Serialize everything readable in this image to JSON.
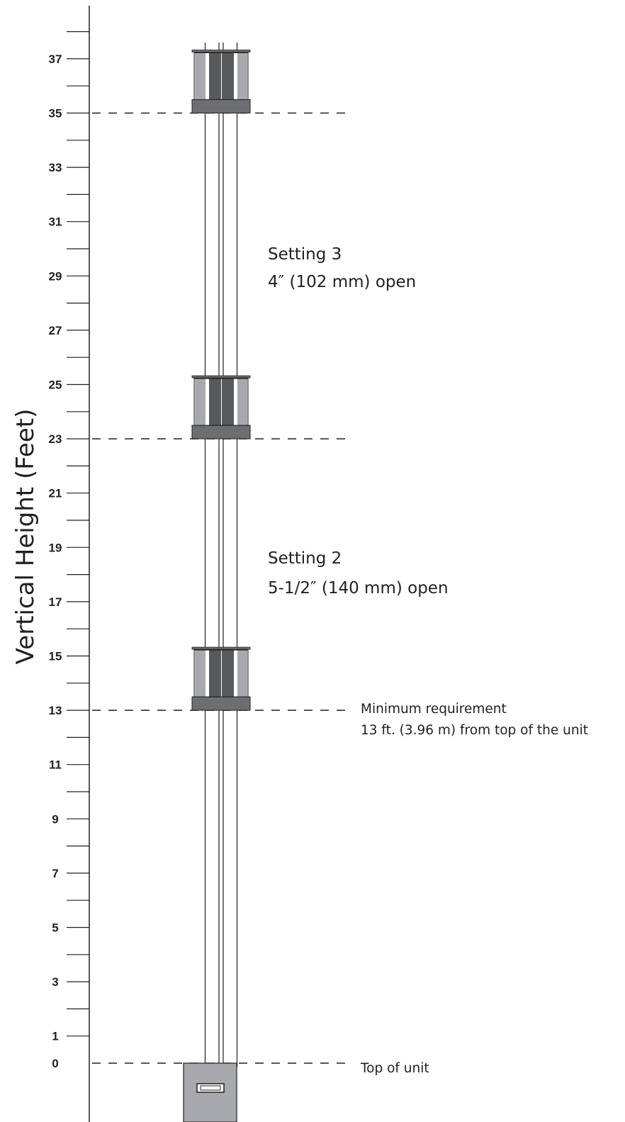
{
  "axis": {
    "title": "Vertical Height (Feet)",
    "tick_labels": [
      "37",
      "35",
      "33",
      "31",
      "29",
      "27",
      "25",
      "23",
      "21",
      "19",
      "17",
      "15",
      "13",
      "11",
      "9",
      "7",
      "5",
      "3",
      "1",
      "0"
    ]
  },
  "chart_data": {
    "type": "diagram",
    "y_unit": "feet",
    "y_range": [
      0,
      38
    ],
    "labeled_ticks": [
      0,
      1,
      3,
      5,
      7,
      9,
      11,
      13,
      15,
      17,
      19,
      21,
      23,
      25,
      27,
      29,
      31,
      33,
      35,
      37
    ],
    "minor_ticks": [
      2,
      4,
      6,
      8,
      10,
      12,
      14,
      16,
      18,
      20,
      22,
      24,
      26,
      28,
      30,
      32,
      34,
      36,
      38
    ],
    "reference_lines": [
      {
        "y": 35
      },
      {
        "y": 23
      },
      {
        "y": 13
      },
      {
        "y": 0
      }
    ],
    "dampers_at": [
      13,
      23,
      35
    ],
    "unit_top_at": 0
  },
  "annotations": {
    "setting3_title": "Setting 3",
    "setting3_detail": "4″ (102 mm) open",
    "setting2_title": "Setting 2",
    "setting2_detail": "5-1/2″ (140 mm) open",
    "minimum_title": "Minimum requirement",
    "minimum_detail": "13 ft. (3.96 m) from top of the unit",
    "top_of_unit": "Top of unit"
  },
  "colors": {
    "ink": "#231f20",
    "collar": "#6d6e71",
    "body_light": "#a7a9ac",
    "body_dark": "#58595b",
    "unit_fill": "#a7a9ac"
  }
}
